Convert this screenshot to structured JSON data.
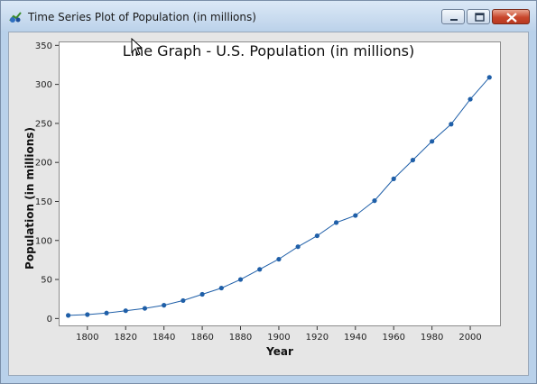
{
  "window": {
    "title": "Time Series Plot of Population (in millions)",
    "icon": "minitab-graph-icon",
    "controls": [
      "minimize",
      "maximize",
      "close"
    ]
  },
  "chart_data": {
    "type": "line",
    "title": "Line Graph - U.S. Population (in millions)",
    "xlabel": "Year",
    "ylabel": "Population (in millions)",
    "x": [
      1790,
      1800,
      1810,
      1820,
      1830,
      1840,
      1850,
      1860,
      1870,
      1880,
      1890,
      1900,
      1910,
      1920,
      1930,
      1940,
      1950,
      1960,
      1970,
      1980,
      1990,
      2000,
      2010
    ],
    "series": [
      {
        "values": [
          4,
          5,
          7,
          10,
          13,
          17,
          23,
          31,
          39,
          50,
          63,
          76,
          92,
          106,
          123,
          132,
          151,
          179,
          203,
          227,
          249,
          281,
          309
        ]
      }
    ],
    "xticks": [
      1800,
      1820,
      1840,
      1860,
      1880,
      1900,
      1920,
      1940,
      1960,
      1980,
      2000
    ],
    "yticks": [
      0,
      50,
      100,
      150,
      200,
      250,
      300,
      350
    ],
    "xlim": [
      1785,
      2016
    ],
    "ylim": [
      -10,
      355
    ],
    "grid": false,
    "legend": "none",
    "colors": {
      "line": "#1f5fa8",
      "marker": "#1f5fa8"
    }
  }
}
